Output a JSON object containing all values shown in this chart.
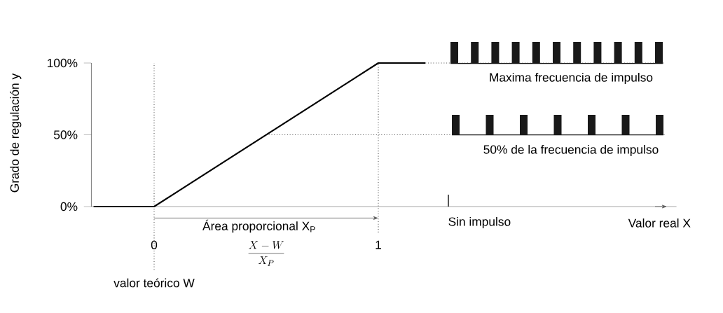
{
  "chart_data": {
    "type": "line",
    "xlabel": "Valor real X",
    "ylabel": "Grado de regulación y",
    "x": [
      -0.27,
      0,
      1,
      1.21
    ],
    "series": [
      {
        "color": "#000000",
        "values": [
          0,
          0,
          100,
          100
        ]
      }
    ],
    "xlim": [
      -0.28,
      2.28
    ],
    "ylim": [
      0,
      100
    ],
    "xticks": [
      0,
      1
    ],
    "yticks": [
      {
        "value": 0,
        "label": "0%"
      },
      {
        "value": 50,
        "label": "50%"
      },
      {
        "value": 100,
        "label": "100%"
      }
    ],
    "ref_lines": [
      {
        "axis": "x",
        "value": 0,
        "label": "valor teórico W",
        "color": "#555555",
        "line_style": "dotted"
      },
      {
        "axis": "x",
        "value": 1,
        "color": "#555555",
        "line_style": "dotted"
      },
      {
        "axis": "y",
        "value": 50,
        "color": "#555555",
        "line_style": "dotted"
      },
      {
        "axis": "y",
        "value": 100,
        "color": "#555555",
        "line_style": "dotted"
      }
    ],
    "annotations": [
      "Área proporcional X$_{P}$",
      "\\frac{X - W}{X_{P}}",
      "Maxima frecuencia de impulso",
      "50% de la frecuencia de impulso",
      "Sin impulso"
    ],
    "marker": "none",
    "line_style": "solid"
  }
}
